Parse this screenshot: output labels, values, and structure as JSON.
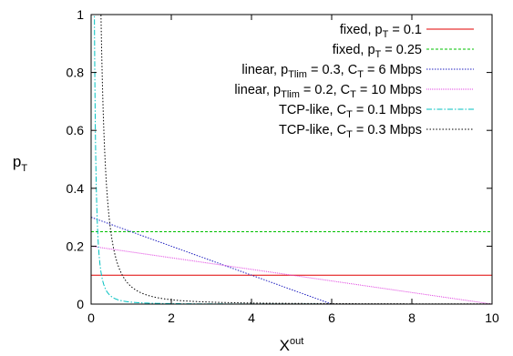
{
  "chart_data": {
    "type": "line",
    "title": "",
    "xlabel": {
      "base": "X",
      "sup": "out"
    },
    "ylabel": {
      "base": "p",
      "sub": "T"
    },
    "xlim": [
      0,
      10
    ],
    "ylim": [
      0,
      1
    ],
    "xticks": [
      "0",
      "2",
      "4",
      "6",
      "8",
      "10"
    ],
    "yticks": [
      "0",
      "0.2",
      "0.4",
      "0.6",
      "0.8",
      "1"
    ],
    "grid": false,
    "legend_position": "top-right",
    "series": [
      {
        "name": "fixed, p_T = 0.1",
        "label_parts": [
          {
            "t": "fixed, p"
          },
          {
            "t": "T",
            "sub": true
          },
          {
            "t": " = 0.1"
          }
        ],
        "color": "#e00000",
        "dash": "",
        "kind": "constant",
        "value": 0.1
      },
      {
        "name": "fixed, p_T = 0.25",
        "label_parts": [
          {
            "t": "fixed, p"
          },
          {
            "t": "T",
            "sub": true
          },
          {
            "t": " = 0.25"
          }
        ],
        "color": "#00c000",
        "dash": "3,2",
        "kind": "constant",
        "value": 0.25
      },
      {
        "name": "linear, p_Tlim = 0.3, C_T = 6 Mbps",
        "label_parts": [
          {
            "t": "linear, p"
          },
          {
            "t": "Tlim",
            "sub": true
          },
          {
            "t": " = 0.3, C"
          },
          {
            "t": "T",
            "sub": true
          },
          {
            "t": " = 6 Mbps"
          }
        ],
        "color": "#2020c0",
        "dash": "1.5,1.5",
        "kind": "linear",
        "points": [
          [
            0,
            0.3
          ],
          [
            6,
            0
          ],
          [
            10,
            0
          ]
        ]
      },
      {
        "name": "linear, p_Tlim = 0.2, C_T = 10 Mbps",
        "label_parts": [
          {
            "t": "linear, p"
          },
          {
            "t": "Tlim",
            "sub": true
          },
          {
            "t": " = 0.2, C"
          },
          {
            "t": "T",
            "sub": true
          },
          {
            "t": " = 10 Mbps"
          }
        ],
        "color": "#e040e0",
        "dash": "1,1",
        "kind": "linear",
        "points": [
          [
            0,
            0.2
          ],
          [
            10,
            0
          ]
        ]
      },
      {
        "name": "TCP-like, C_T = 0.1 Mbps",
        "label_parts": [
          {
            "t": "TCP-like, C"
          },
          {
            "t": "T",
            "sub": true
          },
          {
            "t": " = 0.1 Mbps"
          }
        ],
        "color": "#00c0c0",
        "dash": "6,2,1.5,2",
        "kind": "tcp",
        "C": 0.1
      },
      {
        "name": "TCP-like, C_T = 0.3 Mbps",
        "label_parts": [
          {
            "t": "TCP-like, C"
          },
          {
            "t": "T",
            "sub": true
          },
          {
            "t": " = 0.3 Mbps"
          }
        ],
        "color": "#000000",
        "dash": "1.5,2",
        "kind": "tcp",
        "C": 0.3
      }
    ]
  }
}
